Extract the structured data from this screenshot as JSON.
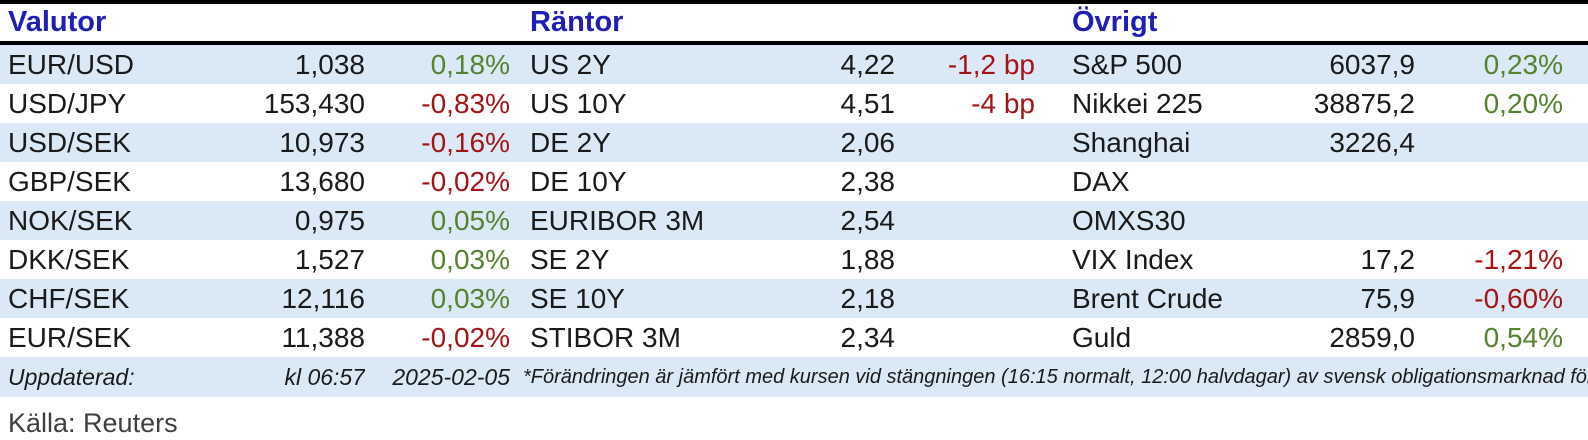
{
  "colors": {
    "header_text": "#1f1fb4",
    "stripe_bg": "#dbe9f7",
    "positive": "#55822f",
    "negative": "#a31414",
    "border": "#000000",
    "body_text": "#1a1a1a",
    "source_text": "#3f3f3f"
  },
  "sections": [
    {
      "title": "Valutor",
      "rows": [
        {
          "label": "EUR/USD",
          "value": "1,038",
          "change": "0,18%",
          "trend": "up"
        },
        {
          "label": "USD/JPY",
          "value": "153,430",
          "change": "-0,83%",
          "trend": "down"
        },
        {
          "label": "USD/SEK",
          "value": "10,973",
          "change": "-0,16%",
          "trend": "down"
        },
        {
          "label": "GBP/SEK",
          "value": "13,680",
          "change": "-0,02%",
          "trend": "down"
        },
        {
          "label": "NOK/SEK",
          "value": "0,975",
          "change": "0,05%",
          "trend": "up"
        },
        {
          "label": "DKK/SEK",
          "value": "1,527",
          "change": "0,03%",
          "trend": "up"
        },
        {
          "label": "CHF/SEK",
          "value": "12,116",
          "change": "0,03%",
          "trend": "up"
        },
        {
          "label": "EUR/SEK",
          "value": "11,388",
          "change": "-0,02%",
          "trend": "down"
        }
      ]
    },
    {
      "title": "Räntor",
      "rows": [
        {
          "label": "US 2Y",
          "value": "4,22",
          "change": "-1,2 bp",
          "trend": "down"
        },
        {
          "label": "US 10Y",
          "value": "4,51",
          "change": "-4 bp",
          "trend": "down"
        },
        {
          "label": "DE 2Y",
          "value": "2,06",
          "change": "",
          "trend": ""
        },
        {
          "label": "DE 10Y",
          "value": "2,38",
          "change": "",
          "trend": ""
        },
        {
          "label": "EURIBOR 3M",
          "value": "2,54",
          "change": "",
          "trend": ""
        },
        {
          "label": "SE 2Y",
          "value": "1,88",
          "change": "",
          "trend": ""
        },
        {
          "label": "SE 10Y",
          "value": "2,18",
          "change": "",
          "trend": ""
        },
        {
          "label": "STIBOR 3M",
          "value": "2,34",
          "change": "",
          "trend": ""
        }
      ]
    },
    {
      "title": "Övrigt",
      "rows": [
        {
          "label": "S&P 500",
          "value": "6037,9",
          "change": "0,23%",
          "trend": "up"
        },
        {
          "label": "Nikkei 225",
          "value": "38875,2",
          "change": "0,20%",
          "trend": "up"
        },
        {
          "label": "Shanghai",
          "value": "3226,4",
          "change": "",
          "trend": ""
        },
        {
          "label": "DAX",
          "value": "",
          "change": "",
          "trend": ""
        },
        {
          "label": "OMXS30",
          "value": "",
          "change": "",
          "trend": ""
        },
        {
          "label": "VIX Index",
          "value": "17,2",
          "change": "-1,21%",
          "trend": "down"
        },
        {
          "label": "Brent Crude",
          "value": "75,9",
          "change": "-0,60%",
          "trend": "down"
        },
        {
          "label": "Guld",
          "value": "2859,0",
          "change": "0,54%",
          "trend": "up"
        }
      ]
    }
  ],
  "footer": {
    "updated_label": "Uppdaterad:",
    "time": "kl 06:57",
    "date": "2025-02-05",
    "note": "*Förändringen är jämfört med kursen vid stängningen (16:15 normalt, 12:00 halvdagar) av svensk obligationsmarknad föregående handelsdag.",
    "source": "Källa: Reuters"
  }
}
